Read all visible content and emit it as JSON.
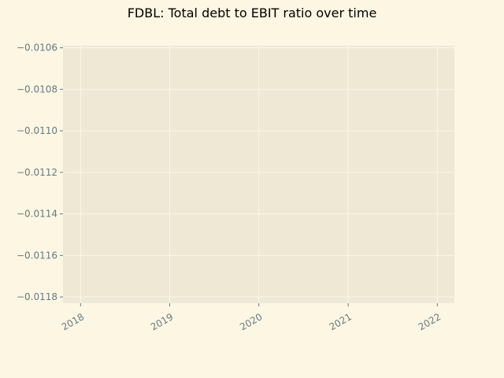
{
  "chart_data": {
    "type": "line",
    "title": "FDBL: Total debt to EBIT ratio over time",
    "xlabel": "",
    "ylabel": "",
    "x_ticks": [
      "2018",
      "2019",
      "2020",
      "2021",
      "2022"
    ],
    "y_ticks": [
      "−0.0106",
      "−0.0108",
      "−0.0110",
      "−0.0112",
      "−0.0114",
      "−0.0116",
      "−0.0118"
    ],
    "y_tick_values": [
      -0.0106,
      -0.0108,
      -0.011,
      -0.0112,
      -0.0114,
      -0.0116,
      -0.0118
    ],
    "ylim": [
      -0.01183,
      -0.01059
    ],
    "xlim": [
      "2017-10-21",
      "2022-03-12"
    ],
    "x_tick_dates": [
      "2018-01-01",
      "2019-01-01",
      "2020-01-01",
      "2021-01-01",
      "2022-01-01"
    ],
    "series": [],
    "grid": true,
    "colors": {
      "figure_bg": "#fdf6e3",
      "axes_bg": "#eee8d5",
      "grid": "#fdf6e3",
      "tick_text": "#657b83",
      "title_text": "#000000"
    }
  }
}
